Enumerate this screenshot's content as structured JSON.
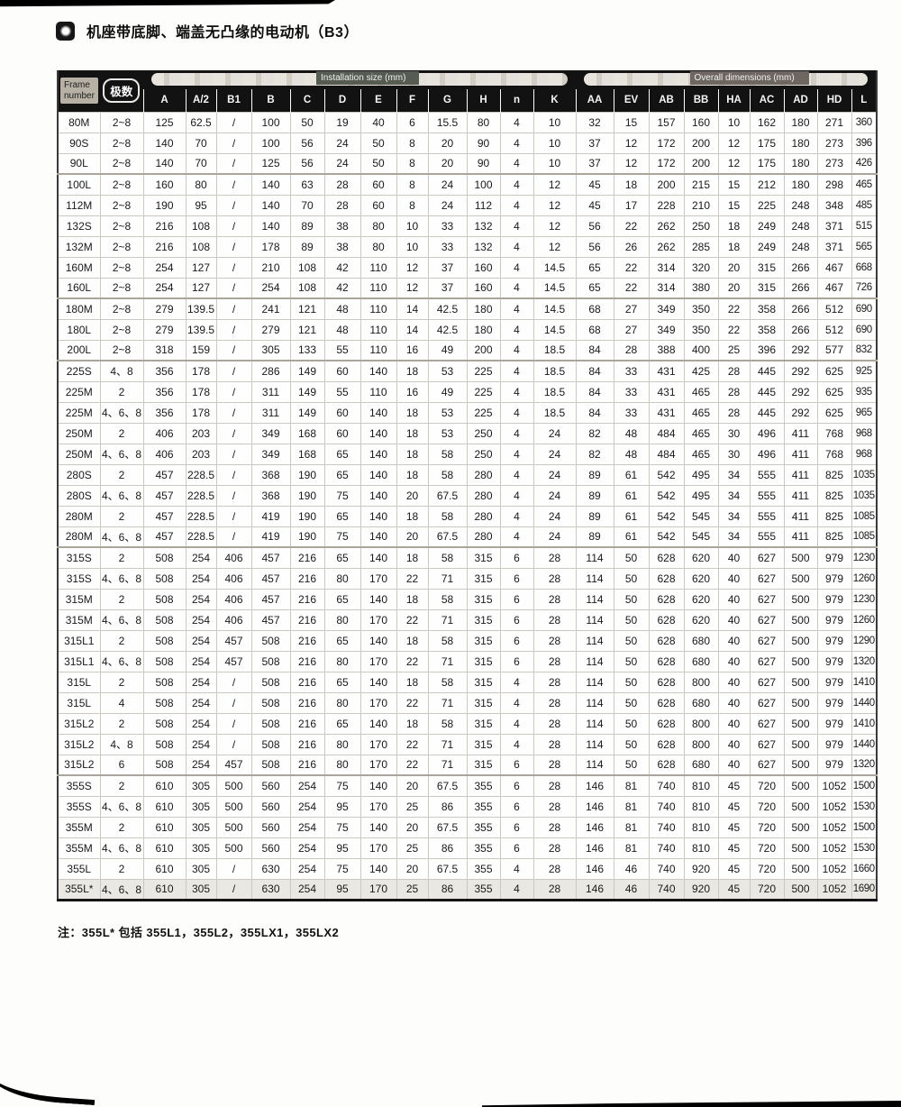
{
  "page": {
    "title": "机座带底脚、端盖无凸缘的电动机（B3）",
    "note": "注：355L* 包括 355L1，355L2，355LX1，355LX2"
  },
  "colors": {
    "header_bg": "#121212",
    "header_text": "#f5f5f5",
    "frame_label_bg": "#b6b0a5",
    "frame_label_text": "#1d1d1d",
    "install_label_bg": "#575c52",
    "overall_label_bg": "#6e6661",
    "overlay_label_text": "#f2f2ef",
    "body_text": "#191919",
    "grid_line": "#ccc8c1",
    "note_text": "#111111",
    "artifact": "#000000"
  },
  "table": {
    "corner_headers": {
      "frame_number": "Frame number",
      "poles": "极数"
    },
    "group_headers": {
      "installation": "Installation size (mm)",
      "overall": "Overall dimensions (mm)"
    },
    "columns": [
      "A",
      "A/2",
      "B1",
      "B",
      "C",
      "D",
      "E",
      "F",
      "G",
      "H",
      "n",
      "K",
      "AA",
      "EV",
      "AB",
      "BB",
      "HA",
      "AC",
      "AD",
      "HD",
      "L"
    ],
    "rows": [
      [
        "80M",
        "2~8",
        "125",
        "62.5",
        "/",
        "100",
        "50",
        "19",
        "40",
        "6",
        "15.5",
        "80",
        "4",
        "10",
        "32",
        "15",
        "157",
        "160",
        "10",
        "162",
        "180",
        "271",
        "360"
      ],
      [
        "90S",
        "2~8",
        "140",
        "70",
        "/",
        "100",
        "56",
        "24",
        "50",
        "8",
        "20",
        "90",
        "4",
        "10",
        "37",
        "12",
        "172",
        "200",
        "12",
        "175",
        "180",
        "273",
        "396"
      ],
      [
        "90L",
        "2~8",
        "140",
        "70",
        "/",
        "125",
        "56",
        "24",
        "50",
        "8",
        "20",
        "90",
        "4",
        "10",
        "37",
        "12",
        "172",
        "200",
        "12",
        "175",
        "180",
        "273",
        "426"
      ],
      [
        "100L",
        "2~8",
        "160",
        "80",
        "/",
        "140",
        "63",
        "28",
        "60",
        "8",
        "24",
        "100",
        "4",
        "12",
        "45",
        "18",
        "200",
        "215",
        "15",
        "212",
        "180",
        "298",
        "465"
      ],
      [
        "112M",
        "2~8",
        "190",
        "95",
        "/",
        "140",
        "70",
        "28",
        "60",
        "8",
        "24",
        "112",
        "4",
        "12",
        "45",
        "17",
        "228",
        "210",
        "15",
        "225",
        "248",
        "348",
        "485"
      ],
      [
        "132S",
        "2~8",
        "216",
        "108",
        "/",
        "140",
        "89",
        "38",
        "80",
        "10",
        "33",
        "132",
        "4",
        "12",
        "56",
        "22",
        "262",
        "250",
        "18",
        "249",
        "248",
        "371",
        "515"
      ],
      [
        "132M",
        "2~8",
        "216",
        "108",
        "/",
        "178",
        "89",
        "38",
        "80",
        "10",
        "33",
        "132",
        "4",
        "12",
        "56",
        "26",
        "262",
        "285",
        "18",
        "249",
        "248",
        "371",
        "565"
      ],
      [
        "160M",
        "2~8",
        "254",
        "127",
        "/",
        "210",
        "108",
        "42",
        "110",
        "12",
        "37",
        "160",
        "4",
        "14.5",
        "65",
        "22",
        "314",
        "320",
        "20",
        "315",
        "266",
        "467",
        "668"
      ],
      [
        "160L",
        "2~8",
        "254",
        "127",
        "/",
        "254",
        "108",
        "42",
        "110",
        "12",
        "37",
        "160",
        "4",
        "14.5",
        "65",
        "22",
        "314",
        "380",
        "20",
        "315",
        "266",
        "467",
        "726"
      ],
      [
        "180M",
        "2~8",
        "279",
        "139.5",
        "/",
        "241",
        "121",
        "48",
        "110",
        "14",
        "42.5",
        "180",
        "4",
        "14.5",
        "68",
        "27",
        "349",
        "350",
        "22",
        "358",
        "266",
        "512",
        "690"
      ],
      [
        "180L",
        "2~8",
        "279",
        "139.5",
        "/",
        "279",
        "121",
        "48",
        "110",
        "14",
        "42.5",
        "180",
        "4",
        "14.5",
        "68",
        "27",
        "349",
        "350",
        "22",
        "358",
        "266",
        "512",
        "690"
      ],
      [
        "200L",
        "2~8",
        "318",
        "159",
        "/",
        "305",
        "133",
        "55",
        "110",
        "16",
        "49",
        "200",
        "4",
        "18.5",
        "84",
        "28",
        "388",
        "400",
        "25",
        "396",
        "292",
        "577",
        "832"
      ],
      [
        "225S",
        "4、8",
        "356",
        "178",
        "/",
        "286",
        "149",
        "60",
        "140",
        "18",
        "53",
        "225",
        "4",
        "18.5",
        "84",
        "33",
        "431",
        "425",
        "28",
        "445",
        "292",
        "625",
        "925"
      ],
      [
        "225M",
        "2",
        "356",
        "178",
        "/",
        "311",
        "149",
        "55",
        "110",
        "16",
        "49",
        "225",
        "4",
        "18.5",
        "84",
        "33",
        "431",
        "465",
        "28",
        "445",
        "292",
        "625",
        "935"
      ],
      [
        "225M",
        "4、6、8",
        "356",
        "178",
        "/",
        "311",
        "149",
        "60",
        "140",
        "18",
        "53",
        "225",
        "4",
        "18.5",
        "84",
        "33",
        "431",
        "465",
        "28",
        "445",
        "292",
        "625",
        "965"
      ],
      [
        "250M",
        "2",
        "406",
        "203",
        "/",
        "349",
        "168",
        "60",
        "140",
        "18",
        "53",
        "250",
        "4",
        "24",
        "82",
        "48",
        "484",
        "465",
        "30",
        "496",
        "411",
        "768",
        "968"
      ],
      [
        "250M",
        "4、6、8",
        "406",
        "203",
        "/",
        "349",
        "168",
        "65",
        "140",
        "18",
        "58",
        "250",
        "4",
        "24",
        "82",
        "48",
        "484",
        "465",
        "30",
        "496",
        "411",
        "768",
        "968"
      ],
      [
        "280S",
        "2",
        "457",
        "228.5",
        "/",
        "368",
        "190",
        "65",
        "140",
        "18",
        "58",
        "280",
        "4",
        "24",
        "89",
        "61",
        "542",
        "495",
        "34",
        "555",
        "411",
        "825",
        "1035"
      ],
      [
        "280S",
        "4、6、8",
        "457",
        "228.5",
        "/",
        "368",
        "190",
        "75",
        "140",
        "20",
        "67.5",
        "280",
        "4",
        "24",
        "89",
        "61",
        "542",
        "495",
        "34",
        "555",
        "411",
        "825",
        "1035"
      ],
      [
        "280M",
        "2",
        "457",
        "228.5",
        "/",
        "419",
        "190",
        "65",
        "140",
        "18",
        "58",
        "280",
        "4",
        "24",
        "89",
        "61",
        "542",
        "545",
        "34",
        "555",
        "411",
        "825",
        "1085"
      ],
      [
        "280M",
        "4、6、8",
        "457",
        "228.5",
        "/",
        "419",
        "190",
        "75",
        "140",
        "20",
        "67.5",
        "280",
        "4",
        "24",
        "89",
        "61",
        "542",
        "545",
        "34",
        "555",
        "411",
        "825",
        "1085"
      ],
      [
        "315S",
        "2",
        "508",
        "254",
        "406",
        "457",
        "216",
        "65",
        "140",
        "18",
        "58",
        "315",
        "6",
        "28",
        "114",
        "50",
        "628",
        "620",
        "40",
        "627",
        "500",
        "979",
        "1230"
      ],
      [
        "315S",
        "4、6、8",
        "508",
        "254",
        "406",
        "457",
        "216",
        "80",
        "170",
        "22",
        "71",
        "315",
        "6",
        "28",
        "114",
        "50",
        "628",
        "620",
        "40",
        "627",
        "500",
        "979",
        "1260"
      ],
      [
        "315M",
        "2",
        "508",
        "254",
        "406",
        "457",
        "216",
        "65",
        "140",
        "18",
        "58",
        "315",
        "6",
        "28",
        "114",
        "50",
        "628",
        "620",
        "40",
        "627",
        "500",
        "979",
        "1230"
      ],
      [
        "315M",
        "4、6、8",
        "508",
        "254",
        "406",
        "457",
        "216",
        "80",
        "170",
        "22",
        "71",
        "315",
        "6",
        "28",
        "114",
        "50",
        "628",
        "620",
        "40",
        "627",
        "500",
        "979",
        "1260"
      ],
      [
        "315L1",
        "2",
        "508",
        "254",
        "457",
        "508",
        "216",
        "65",
        "140",
        "18",
        "58",
        "315",
        "6",
        "28",
        "114",
        "50",
        "628",
        "680",
        "40",
        "627",
        "500",
        "979",
        "1290"
      ],
      [
        "315L1",
        "4、6、8",
        "508",
        "254",
        "457",
        "508",
        "216",
        "80",
        "170",
        "22",
        "71",
        "315",
        "6",
        "28",
        "114",
        "50",
        "628",
        "680",
        "40",
        "627",
        "500",
        "979",
        "1320"
      ],
      [
        "315L",
        "2",
        "508",
        "254",
        "/",
        "508",
        "216",
        "65",
        "140",
        "18",
        "58",
        "315",
        "4",
        "28",
        "114",
        "50",
        "628",
        "800",
        "40",
        "627",
        "500",
        "979",
        "1410"
      ],
      [
        "315L",
        "4",
        "508",
        "254",
        "/",
        "508",
        "216",
        "80",
        "170",
        "22",
        "71",
        "315",
        "4",
        "28",
        "114",
        "50",
        "628",
        "680",
        "40",
        "627",
        "500",
        "979",
        "1440"
      ],
      [
        "315L2",
        "2",
        "508",
        "254",
        "/",
        "508",
        "216",
        "65",
        "140",
        "18",
        "58",
        "315",
        "4",
        "28",
        "114",
        "50",
        "628",
        "800",
        "40",
        "627",
        "500",
        "979",
        "1410"
      ],
      [
        "315L2",
        "4、8",
        "508",
        "254",
        "/",
        "508",
        "216",
        "80",
        "170",
        "22",
        "71",
        "315",
        "4",
        "28",
        "114",
        "50",
        "628",
        "800",
        "40",
        "627",
        "500",
        "979",
        "1440"
      ],
      [
        "315L2",
        "6",
        "508",
        "254",
        "457",
        "508",
        "216",
        "80",
        "170",
        "22",
        "71",
        "315",
        "6",
        "28",
        "114",
        "50",
        "628",
        "680",
        "40",
        "627",
        "500",
        "979",
        "1320"
      ],
      [
        "355S",
        "2",
        "610",
        "305",
        "500",
        "560",
        "254",
        "75",
        "140",
        "20",
        "67.5",
        "355",
        "6",
        "28",
        "146",
        "81",
        "740",
        "810",
        "45",
        "720",
        "500",
        "1052",
        "1500"
      ],
      [
        "355S",
        "4、6、8",
        "610",
        "305",
        "500",
        "560",
        "254",
        "95",
        "170",
        "25",
        "86",
        "355",
        "6",
        "28",
        "146",
        "81",
        "740",
        "810",
        "45",
        "720",
        "500",
        "1052",
        "1530"
      ],
      [
        "355M",
        "2",
        "610",
        "305",
        "500",
        "560",
        "254",
        "75",
        "140",
        "20",
        "67.5",
        "355",
        "6",
        "28",
        "146",
        "81",
        "740",
        "810",
        "45",
        "720",
        "500",
        "1052",
        "1500"
      ],
      [
        "355M",
        "4、6、8",
        "610",
        "305",
        "500",
        "560",
        "254",
        "95",
        "170",
        "25",
        "86",
        "355",
        "6",
        "28",
        "146",
        "81",
        "740",
        "810",
        "45",
        "720",
        "500",
        "1052",
        "1530"
      ],
      [
        "355L",
        "2",
        "610",
        "305",
        "/",
        "630",
        "254",
        "75",
        "140",
        "20",
        "67.5",
        "355",
        "4",
        "28",
        "146",
        "46",
        "740",
        "920",
        "45",
        "720",
        "500",
        "1052",
        "1660"
      ],
      [
        "355L*",
        "4、6、8",
        "610",
        "305",
        "/",
        "630",
        "254",
        "95",
        "170",
        "25",
        "86",
        "355",
        "4",
        "28",
        "146",
        "46",
        "740",
        "920",
        "45",
        "720",
        "500",
        "1052",
        "1690"
      ]
    ]
  }
}
